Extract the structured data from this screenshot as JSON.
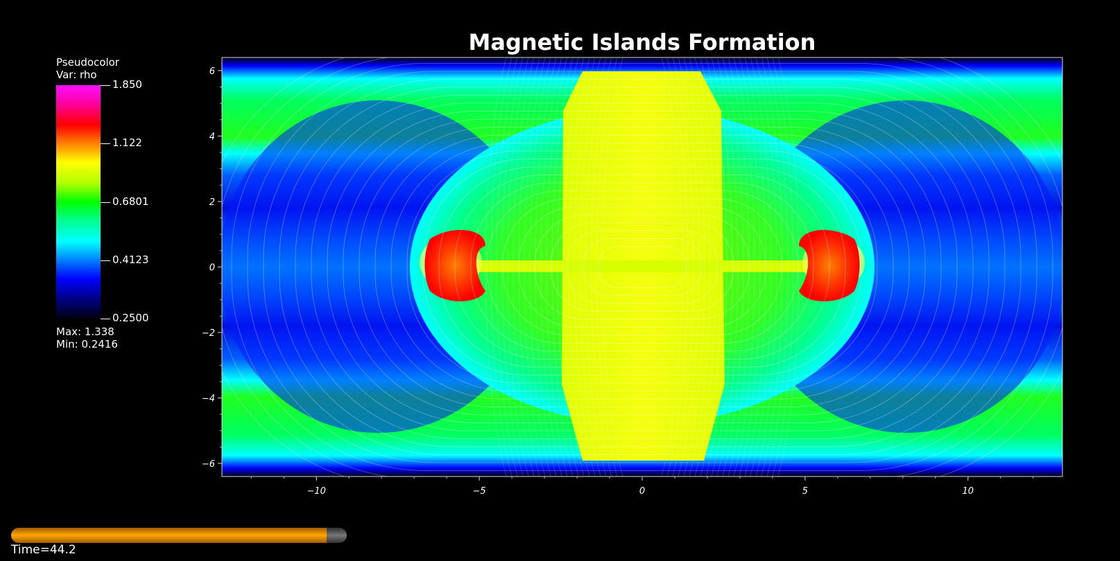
{
  "chart_data": {
    "type": "heatmap",
    "title": "Magnetic Islands Formation",
    "xlabel": "",
    "ylabel": "",
    "xlim": [
      -12.9,
      12.9
    ],
    "ylim": [
      -6.4,
      6.4
    ],
    "x_ticks": [
      -10,
      -5,
      0,
      5,
      10
    ],
    "y_ticks": [
      -6,
      -4,
      -2,
      0,
      2,
      4,
      6
    ],
    "x_tick_labels": [
      "−10",
      "−5",
      "0",
      "5",
      "10"
    ],
    "y_tick_labels": [
      "−6",
      "−4",
      "−2",
      "0",
      "2",
      "4",
      "6"
    ],
    "colormap": [
      "#000010",
      "#0000ff",
      "#00ffff",
      "#00ff00",
      "#ffff00",
      "#ff8000",
      "#ff0000",
      "#ff10ff"
    ],
    "legend": {
      "plot_type": "Pseudocolor",
      "variable": "Var: rho",
      "colorbar_ticks": [
        {
          "value": 1.85,
          "label": "1.850"
        },
        {
          "value": 1.122,
          "label": "1.122"
        },
        {
          "value": 0.6801,
          "label": "0.6801"
        },
        {
          "value": 0.4123,
          "label": "0.4123"
        },
        {
          "value": 0.25,
          "label": "0.2500"
        }
      ],
      "max_label": "Max:  1.338",
      "min_label": "Min:  0.2416"
    },
    "time": {
      "label": "Time=44.2",
      "progress": 0.94
    }
  }
}
